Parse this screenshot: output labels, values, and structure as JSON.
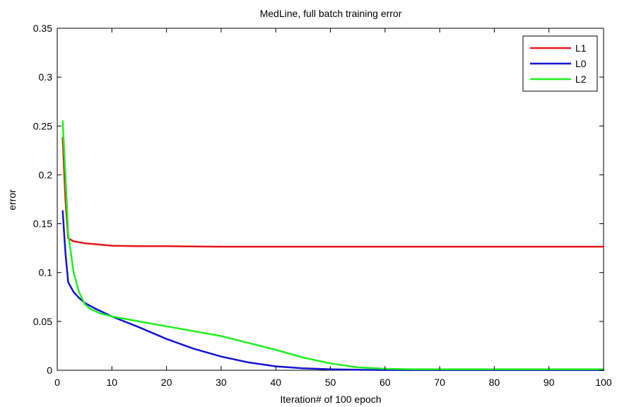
{
  "chart_data": {
    "type": "line",
    "title": "MedLine, full batch training error",
    "xlabel": "Iteration# of 100 epoch",
    "ylabel": "error",
    "xlim": [
      0,
      100
    ],
    "ylim": [
      0,
      0.35
    ],
    "xticks": [
      0,
      10,
      20,
      30,
      40,
      50,
      60,
      70,
      80,
      90,
      100
    ],
    "xtick_labels": [
      "0",
      "10",
      "20",
      "30",
      "40",
      "50",
      "60",
      "70",
      "80",
      "90",
      "100"
    ],
    "yticks": [
      0,
      0.05,
      0.1,
      0.15,
      0.2,
      0.25,
      0.3,
      0.35
    ],
    "ytick_labels": [
      "0",
      "0.05",
      "0.1",
      "0.15",
      "0.2",
      "0.25",
      "0.3",
      "0.35"
    ],
    "grid": false,
    "legend_position": "top-right",
    "series": [
      {
        "name": "L1",
        "color": "#e8161b",
        "x": [
          1,
          1.5,
          2,
          3,
          4,
          5,
          7,
          10,
          15,
          20,
          30,
          40,
          50,
          60,
          70,
          80,
          90,
          100
        ],
        "y": [
          0.238,
          0.175,
          0.135,
          0.132,
          0.131,
          0.13,
          0.129,
          0.1275,
          0.127,
          0.127,
          0.1265,
          0.1265,
          0.1265,
          0.1265,
          0.1265,
          0.1265,
          0.1265,
          0.1265
        ]
      },
      {
        "name": "L0",
        "color": "#1414d2",
        "x": [
          1,
          1.5,
          2,
          3,
          4,
          5,
          7,
          10,
          15,
          20,
          25,
          30,
          35,
          40,
          45,
          50,
          55,
          60,
          65,
          70,
          80,
          90,
          100
        ],
        "y": [
          0.163,
          0.12,
          0.09,
          0.08,
          0.074,
          0.069,
          0.063,
          0.055,
          0.044,
          0.032,
          0.022,
          0.014,
          0.008,
          0.004,
          0.002,
          0.001,
          0.0005,
          0.0003,
          0.0002,
          0.0002,
          0.0002,
          0.0002,
          0.0002
        ]
      },
      {
        "name": "L2",
        "color": "#1ef01e",
        "x": [
          1,
          1.5,
          2,
          3,
          4,
          5,
          6,
          8,
          10,
          15,
          20,
          25,
          30,
          35,
          40,
          45,
          50,
          55,
          60,
          65,
          70,
          80,
          90,
          100
        ],
        "y": [
          0.255,
          0.2,
          0.14,
          0.1,
          0.08,
          0.068,
          0.063,
          0.058,
          0.055,
          0.05,
          0.045,
          0.04,
          0.035,
          0.028,
          0.021,
          0.013,
          0.007,
          0.003,
          0.0015,
          0.001,
          0.001,
          0.001,
          0.001,
          0.001
        ]
      }
    ]
  }
}
